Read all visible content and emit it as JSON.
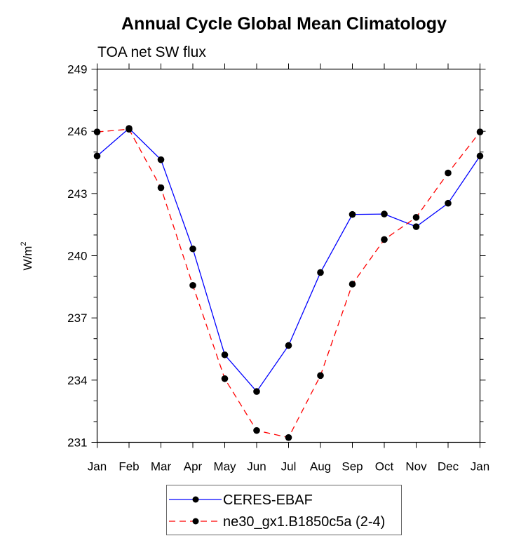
{
  "chart_data": {
    "type": "line",
    "title": "Annual Cycle Global Mean Climatology",
    "subtitle": "TOA net SW flux",
    "xlabel": "",
    "ylabel": "W/m",
    "ylabel_superscript": "2",
    "categories": [
      "Jan",
      "Feb",
      "Mar",
      "Apr",
      "May",
      "Jun",
      "Jul",
      "Aug",
      "Sep",
      "Oct",
      "Nov",
      "Dec",
      "Jan"
    ],
    "ylim": [
      231,
      249
    ],
    "yticks": [
      231,
      234,
      237,
      240,
      243,
      246,
      249
    ],
    "ytick_labels": [
      "231",
      "234",
      "237",
      "240",
      "243",
      "246",
      "249"
    ],
    "y_minor_step": 1,
    "grid": false,
    "legend_position": "bottom-center",
    "series": [
      {
        "name": "CERES-EBAF",
        "color": "#0000ff",
        "line_style": "solid",
        "marker": "filled-circle",
        "values": [
          244.81,
          246.14,
          244.63,
          240.33,
          235.22,
          233.45,
          235.67,
          239.19,
          241.99,
          242.01,
          241.4,
          242.53,
          244.81
        ]
      },
      {
        "name": "ne30_gx1.B1850c5a (2-4)",
        "color": "#ff0000",
        "line_style": "dashed",
        "marker": "filled-circle",
        "values": [
          245.97,
          246.1,
          243.28,
          238.57,
          234.07,
          231.57,
          231.23,
          234.22,
          238.63,
          240.78,
          241.85,
          243.99,
          245.97
        ]
      }
    ]
  }
}
